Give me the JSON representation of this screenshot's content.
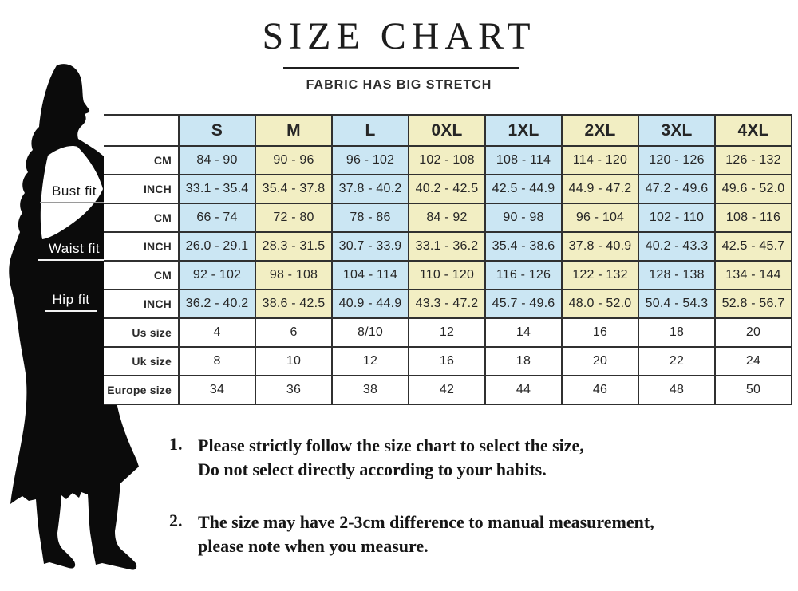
{
  "title": "SIZE CHART",
  "subtitle": "FABRIC HAS BIG STRETCH",
  "fit_labels": {
    "bust": "Bust fit",
    "waist": "Waist fit",
    "hip": "Hip fit"
  },
  "colors": {
    "tint_blue": "#cbe6f3",
    "tint_yellow": "#f2eec3",
    "border": "#303030",
    "silhouette": "#0b0b0b"
  },
  "table": {
    "size_headers": [
      "S",
      "M",
      "L",
      "0XL",
      "1XL",
      "2XL",
      "3XL",
      "4XL"
    ],
    "rows": [
      {
        "label": "CM",
        "section": "Bust fit",
        "tinted": true,
        "values": [
          "84 - 90",
          "90 - 96",
          "96 - 102",
          "102 - 108",
          "108 - 114",
          "114 - 120",
          "120 - 126",
          "126 - 132"
        ]
      },
      {
        "label": "INCH",
        "section": "Bust fit",
        "tinted": true,
        "values": [
          "33.1 - 35.4",
          "35.4 - 37.8",
          "37.8 - 40.2",
          "40.2 - 42.5",
          "42.5 - 44.9",
          "44.9 - 47.2",
          "47.2 - 49.6",
          "49.6 - 52.0"
        ]
      },
      {
        "label": "CM",
        "section": "Waist fit",
        "tinted": true,
        "values": [
          "66 - 74",
          "72 - 80",
          "78 - 86",
          "84 - 92",
          "90 - 98",
          "96 - 104",
          "102 - 110",
          "108 - 116"
        ]
      },
      {
        "label": "INCH",
        "section": "Waist fit",
        "tinted": true,
        "values": [
          "26.0 - 29.1",
          "28.3 - 31.5",
          "30.7 - 33.9",
          "33.1 - 36.2",
          "35.4 - 38.6",
          "37.8 - 40.9",
          "40.2 - 43.3",
          "42.5 - 45.7"
        ]
      },
      {
        "label": "CM",
        "section": "Hip fit",
        "tinted": true,
        "values": [
          "92 - 102",
          "98 - 108",
          "104 - 114",
          "110 - 120",
          "116 - 126",
          "122 - 132",
          "128 - 138",
          "134 - 144"
        ]
      },
      {
        "label": "INCH",
        "section": "Hip fit",
        "tinted": true,
        "values": [
          "36.2 - 40.2",
          "38.6 - 42.5",
          "40.9 - 44.9",
          "43.3 - 47.2",
          "45.7 - 49.6",
          "48.0 - 52.0",
          "50.4 - 54.3",
          "52.8 - 56.7"
        ]
      },
      {
        "label": "Us size",
        "tinted": false,
        "values": [
          "4",
          "6",
          "8/10",
          "12",
          "14",
          "16",
          "18",
          "20"
        ]
      },
      {
        "label": "Uk size",
        "tinted": false,
        "values": [
          "8",
          "10",
          "12",
          "16",
          "18",
          "20",
          "22",
          "24"
        ]
      },
      {
        "label": "Europe size",
        "tinted": false,
        "values": [
          "34",
          "36",
          "38",
          "42",
          "44",
          "46",
          "48",
          "50"
        ]
      }
    ]
  },
  "notes": [
    {
      "num": "1.",
      "lines": [
        "Please strictly follow the size chart to select the size,",
        "Do not select directly according to your habits."
      ]
    },
    {
      "num": "2.",
      "lines": [
        "The size may have 2-3cm difference  to manual measurement,",
        "please note when you measure."
      ]
    }
  ]
}
